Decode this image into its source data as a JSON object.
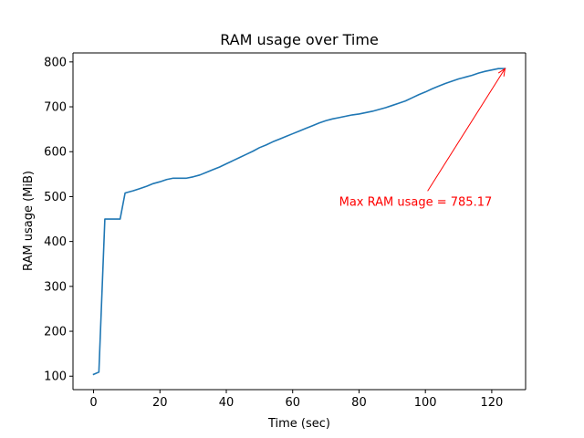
{
  "chart_data": {
    "type": "line",
    "title": "RAM usage over Time",
    "xlabel": "Time (sec)",
    "ylabel": "RAM usage (MiB)",
    "xlim": [
      -6.2,
      130.2
    ],
    "ylim": [
      70,
      820
    ],
    "xticks": [
      0,
      20,
      40,
      60,
      80,
      100,
      120
    ],
    "yticks": [
      100,
      200,
      300,
      400,
      500,
      600,
      700,
      800
    ],
    "grid": false,
    "legend": "none",
    "series": [
      {
        "color": "#1f77b4",
        "x": [
          0,
          1.6,
          3.4,
          5,
          8,
          9.5,
          12,
          14,
          16,
          18,
          20,
          22,
          24,
          26,
          28,
          30,
          32,
          34,
          36,
          38,
          40,
          42,
          44,
          46,
          48,
          50,
          52,
          54,
          56,
          58,
          60,
          62,
          64,
          66,
          68,
          70,
          72,
          74,
          76,
          78,
          80,
          82,
          84,
          86,
          88,
          90,
          92,
          94,
          96,
          98,
          100,
          102,
          104,
          106,
          108,
          110,
          112,
          114,
          116,
          118,
          120,
          122,
          124
        ],
        "y": [
          104,
          109,
          450,
          450,
          450,
          508,
          513,
          518,
          523,
          529,
          533,
          538,
          541,
          541,
          541,
          544,
          548,
          554,
          560,
          566,
          573,
          580,
          587,
          594,
          601,
          609,
          615,
          622,
          628,
          634,
          640,
          646,
          652,
          658,
          664,
          669,
          673,
          676,
          679,
          682,
          684,
          687,
          690,
          694,
          698,
          703,
          708,
          713,
          720,
          727,
          733,
          740,
          746,
          752,
          757,
          762,
          766,
          770,
          775,
          779,
          782,
          785,
          785.17
        ]
      }
    ],
    "annotations": [
      {
        "text": "Max RAM usage = 785.17",
        "color": "#ff0000",
        "xy": [
          124,
          785.17
        ],
        "xytext": [
          74,
          490
        ]
      }
    ]
  }
}
